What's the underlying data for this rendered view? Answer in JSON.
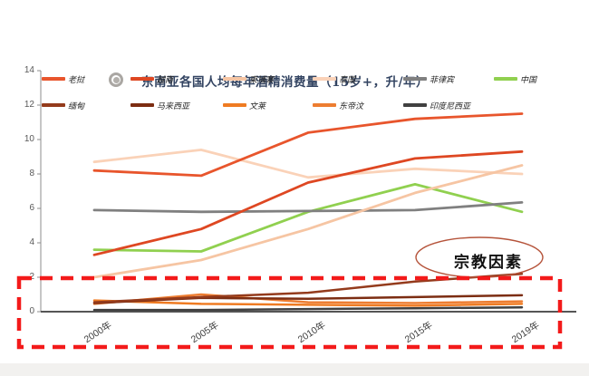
{
  "title": {
    "text": "东南亚各国人均每年酒精消费量（15岁+，升/年）",
    "color": "#334462"
  },
  "annotation": {
    "text": "宗教因素"
  },
  "chart_data": {
    "type": "line",
    "title": "东南亚各国人均每年酒精消费量（15岁+，升/年）",
    "xlabel": "",
    "ylabel": "",
    "categories": [
      "2000年",
      "2005年",
      "2010年",
      "2015年",
      "2019年"
    ],
    "yticks": [
      0,
      2,
      4,
      6,
      8,
      10,
      12,
      14
    ],
    "ylim": [
      0,
      14
    ],
    "grid": false,
    "legend_position": "top",
    "series": [
      {
        "name": "老挝",
        "color": "#e8552c",
        "values": [
          8.2,
          7.9,
          10.4,
          11.2,
          11.5
        ]
      },
      {
        "name": "越南",
        "color": "#de4722",
        "values": [
          3.3,
          4.8,
          7.5,
          8.9,
          9.3
        ]
      },
      {
        "name": "柬埔寨",
        "color": "#f6c5a3",
        "values": [
          2.0,
          3.0,
          4.8,
          6.9,
          8.5
        ]
      },
      {
        "name": "泰国",
        "color": "#fad2b8",
        "values": [
          8.7,
          9.4,
          7.8,
          8.3,
          8.0
        ]
      },
      {
        "name": "菲律宾",
        "color": "#808080",
        "values": [
          5.9,
          5.8,
          5.85,
          5.9,
          6.35
        ]
      },
      {
        "name": "中国",
        "color": "#90d04f",
        "values": [
          3.6,
          3.5,
          5.8,
          7.4,
          5.8
        ]
      },
      {
        "name": "缅甸",
        "color": "#943b1c",
        "values": [
          0.55,
          0.85,
          1.1,
          1.75,
          2.2
        ]
      },
      {
        "name": "马来西亚",
        "color": "#7c2d12",
        "values": [
          0.5,
          0.8,
          0.75,
          0.85,
          0.95
        ]
      },
      {
        "name": "文莱",
        "color": "#ef7b22",
        "values": [
          0.65,
          0.45,
          0.4,
          0.35,
          0.45
        ]
      },
      {
        "name": "东帝汶",
        "color": "#ed7d31",
        "values": [
          0.45,
          1.0,
          0.55,
          0.5,
          0.6
        ]
      },
      {
        "name": "印度尼西亚",
        "color": "#404040",
        "values": [
          0.1,
          0.1,
          0.15,
          0.2,
          0.25
        ]
      }
    ],
    "annotations": [
      {
        "shape": "ellipse",
        "text": "宗教因素",
        "border_color": "#b5533a"
      },
      {
        "shape": "dashed-rect",
        "color": "#f31a1a",
        "covers_value_range": [
          0,
          2
        ]
      }
    ]
  }
}
